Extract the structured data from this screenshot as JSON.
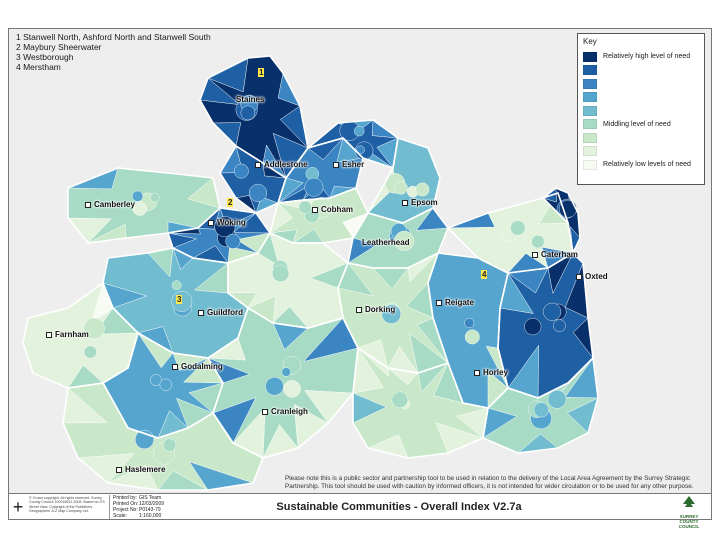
{
  "areas_legend": [
    "1  Stanwell North, Ashford North and Stanwell South",
    "2  Maybury Sheerwater",
    "3  Westborough",
    "4  Merstham"
  ],
  "key": {
    "title": "Key",
    "items": [
      {
        "label": "Relatively high level of need",
        "color": "#08306b"
      },
      {
        "label": "",
        "color": "#1f5fa3"
      },
      {
        "label": "",
        "color": "#3a85c2"
      },
      {
        "label": "",
        "color": "#56a5cf"
      },
      {
        "label": "",
        "color": "#72bcd0"
      },
      {
        "label": "Middling level of need",
        "color": "#a8dbc5"
      },
      {
        "label": "",
        "color": "#c9e8c9"
      },
      {
        "label": "",
        "color": "#e3f2dc"
      },
      {
        "label": "Relatively low levels of need",
        "color": "#f7fbf4"
      }
    ]
  },
  "towns": [
    {
      "name": "Staines",
      "dot": false
    },
    {
      "name": "Addlestone",
      "dot": true
    },
    {
      "name": "Esher",
      "dot": true
    },
    {
      "name": "Camberley",
      "dot": true
    },
    {
      "name": "Woking",
      "dot": true
    },
    {
      "name": "Cobham",
      "dot": true
    },
    {
      "name": "Epsom",
      "dot": true
    },
    {
      "name": "Leatherhead",
      "dot": false
    },
    {
      "name": "Caterham",
      "dot": true
    },
    {
      "name": "Oxted",
      "dot": true
    },
    {
      "name": "Guildford",
      "dot": true
    },
    {
      "name": "Dorking",
      "dot": true
    },
    {
      "name": "Reigate",
      "dot": true
    },
    {
      "name": "Farnham",
      "dot": true
    },
    {
      "name": "Godalming",
      "dot": true
    },
    {
      "name": "Horley",
      "dot": true
    },
    {
      "name": "Cranleigh",
      "dot": true
    },
    {
      "name": "Haslemere",
      "dot": true
    }
  ],
  "markers": [
    "1",
    "2",
    "3",
    "4"
  ],
  "disclaimer": "Please note this is a public sector and partnership tool to be used in relation to the delivery of the Local Area Agreement by the Surrey Strategic Partnership. This tool should be used with caution by informed officers, it is not intended for wider circulation or to be used for any other purpose.",
  "footer": {
    "copyright": "© Crown copyright. All rights reserved. Surrey County Council 100019613 2008. Based on OS Street View. Copyright of the Publishers Geographers' A-Z Map Company Ltd.",
    "meta": [
      {
        "k": "Printed by:",
        "v": "GIS Team"
      },
      {
        "k": "Printed On:",
        "v": "12/03/2009"
      },
      {
        "k": "Project No:",
        "v": "P0143-79"
      },
      {
        "k": "Scale:",
        "v": "1:160,000"
      }
    ],
    "title": "Sustainable Communities - Overall Index V2.7a",
    "north_symbol": "+",
    "logo_text": "SURREY COUNTY COUNCIL"
  }
}
